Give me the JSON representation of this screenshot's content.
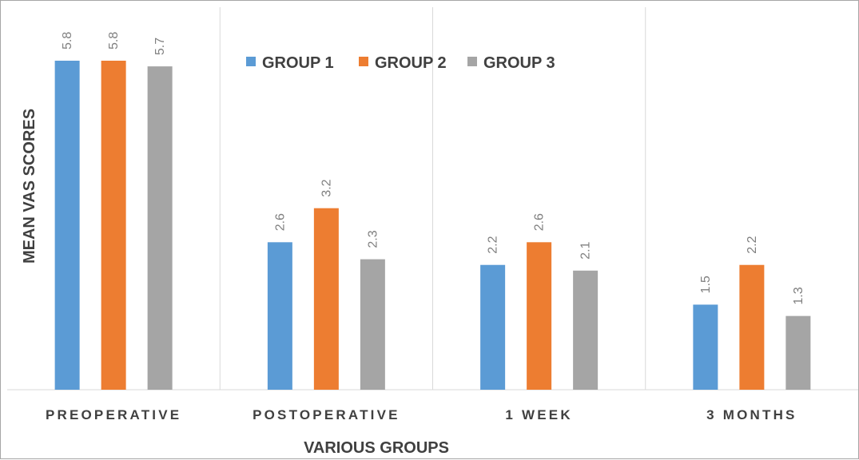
{
  "chart_data": {
    "type": "bar",
    "categories": [
      "PREOPERATIVE",
      "POSTOPERATIVE",
      "1 WEEK",
      "3 MONTHS"
    ],
    "series": [
      {
        "name": "GROUP 1",
        "values": [
          5.8,
          2.6,
          2.2,
          1.5
        ],
        "color": "#5b9bd5"
      },
      {
        "name": "GROUP 2",
        "values": [
          5.8,
          3.2,
          2.6,
          2.2
        ],
        "color": "#ed7d31"
      },
      {
        "name": "GROUP 3",
        "values": [
          5.7,
          2.3,
          2.1,
          1.3
        ],
        "color": "#a5a5a5"
      }
    ],
    "title": "",
    "xlabel": "VARIOUS GROUPS",
    "ylabel": "MEAN VAS SCORES",
    "ylim": [
      0,
      5.8
    ],
    "grid": false,
    "legend_position": "top-center",
    "data_labels": true,
    "data_label_orientation": "vertical"
  }
}
